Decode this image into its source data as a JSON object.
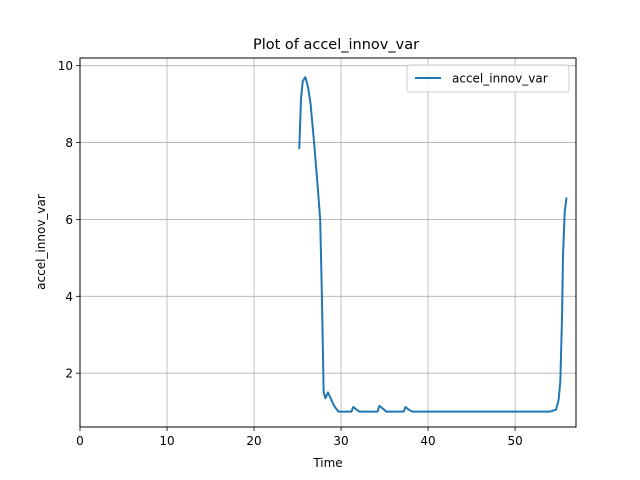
{
  "chart_data": {
    "type": "line",
    "title": "Plot of accel_innov_var",
    "xlabel": "Time",
    "ylabel": "accel_innov_var",
    "xlim": [
      0,
      57
    ],
    "ylim": [
      0.6,
      10.2
    ],
    "xticks": [
      0,
      10,
      20,
      30,
      40,
      50
    ],
    "yticks": [
      2,
      4,
      6,
      8,
      10
    ],
    "grid": true,
    "legend_position": "top-right",
    "colors": {
      "series": "#1f77b4"
    },
    "series": [
      {
        "name": "accel_innov_var",
        "x": [
          25.2,
          25.4,
          25.6,
          25.9,
          26.2,
          26.5,
          26.9,
          27.3,
          27.6,
          27.8,
          28.0,
          28.2,
          28.5,
          28.8,
          29.2,
          29.7,
          30.5,
          31.2,
          31.4,
          31.8,
          32.1,
          33.0,
          34.2,
          34.4,
          34.8,
          35.2,
          36.2,
          37.2,
          37.4,
          37.8,
          38.2,
          40.0,
          45.0,
          50.0,
          54.0,
          54.7,
          55.0,
          55.2,
          55.4,
          55.5,
          55.7,
          55.9
        ],
        "y": [
          7.85,
          9.15,
          9.6,
          9.7,
          9.45,
          9.0,
          8.0,
          6.9,
          6.0,
          4.0,
          1.5,
          1.35,
          1.5,
          1.35,
          1.15,
          1.0,
          1.0,
          1.0,
          1.12,
          1.05,
          1.0,
          1.0,
          1.0,
          1.15,
          1.08,
          1.0,
          1.0,
          1.0,
          1.12,
          1.05,
          1.0,
          1.0,
          1.0,
          1.0,
          1.0,
          1.05,
          1.3,
          1.8,
          3.5,
          5.0,
          6.2,
          6.55
        ]
      }
    ]
  }
}
